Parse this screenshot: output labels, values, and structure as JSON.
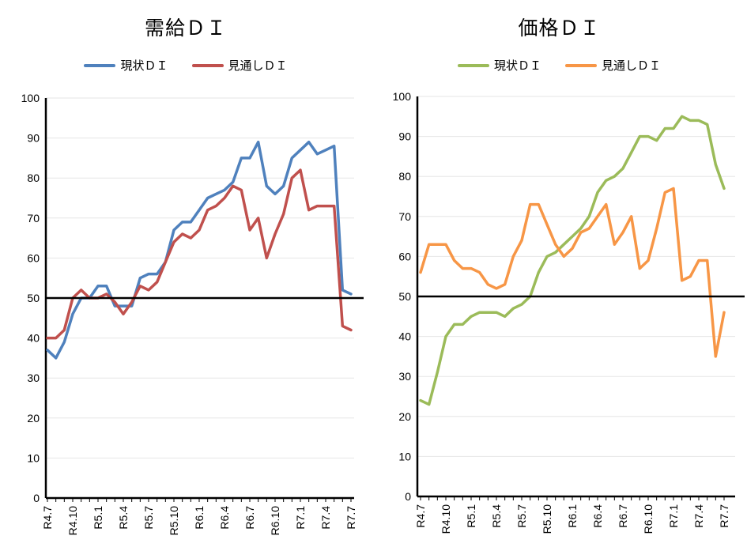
{
  "chart_data": [
    {
      "type": "line",
      "title": "需給ＤＩ",
      "ylim": [
        0,
        100
      ],
      "yticks": [
        0,
        10,
        20,
        30,
        40,
        50,
        60,
        70,
        80,
        90,
        100
      ],
      "x_tick_labels": [
        "R4.7",
        "R4.10",
        "R5.1",
        "R5.4",
        "R5.7",
        "R5.10",
        "R6.1",
        "R6.4",
        "R6.7",
        "R6.10",
        "R7.1",
        "R7.4",
        "R7.7"
      ],
      "reference_line": 50,
      "grid": "horizontal",
      "legend_position": "top",
      "series": [
        {
          "name": "現状ＤＩ",
          "color": "#4f81bd",
          "values": [
            37,
            35,
            39,
            46,
            50,
            50,
            53,
            53,
            48,
            48,
            48,
            55,
            56,
            56,
            59,
            67,
            69,
            69,
            72,
            75,
            76,
            77,
            79,
            85,
            85,
            89,
            78,
            76,
            78,
            85,
            87,
            89,
            86,
            87,
            88,
            52,
            51
          ]
        },
        {
          "name": "見通しＤＩ",
          "color": "#c0504d",
          "values": [
            40,
            40,
            42,
            50,
            52,
            50,
            50,
            51,
            49,
            46,
            49,
            53,
            52,
            54,
            59,
            64,
            66,
            65,
            67,
            72,
            73,
            75,
            78,
            77,
            67,
            70,
            60,
            66,
            71,
            80,
            82,
            72,
            73,
            73,
            73,
            43,
            42
          ]
        }
      ]
    },
    {
      "type": "line",
      "title": "価格ＤＩ",
      "ylim": [
        0,
        100
      ],
      "yticks": [
        0,
        10,
        20,
        30,
        40,
        50,
        60,
        70,
        80,
        90,
        100
      ],
      "x_tick_labels": [
        "R4.7",
        "R4.10",
        "R5.1",
        "R5.4",
        "R5.7",
        "R5.10",
        "R6.1",
        "R6.4",
        "R6.7",
        "R6.10",
        "R7.1",
        "R7.4",
        "R7.7"
      ],
      "reference_line": 50,
      "grid": "horizontal",
      "legend_position": "top",
      "series": [
        {
          "name": "現状ＤＩ",
          "color": "#9bbb59",
          "values": [
            24,
            23,
            31,
            40,
            43,
            43,
            45,
            46,
            46,
            46,
            45,
            47,
            48,
            50,
            56,
            60,
            61,
            63,
            65,
            67,
            70,
            76,
            79,
            80,
            82,
            86,
            90,
            90,
            89,
            92,
            92,
            95,
            94,
            94,
            93,
            83,
            77
          ]
        },
        {
          "name": "見通しＤＩ",
          "color": "#f79646",
          "values": [
            56,
            63,
            63,
            63,
            59,
            57,
            57,
            56,
            53,
            52,
            53,
            60,
            64,
            73,
            73,
            68,
            63,
            60,
            62,
            66,
            67,
            70,
            73,
            63,
            66,
            70,
            57,
            59,
            67,
            76,
            77,
            54,
            55,
            59,
            59,
            35,
            46
          ]
        }
      ]
    }
  ]
}
